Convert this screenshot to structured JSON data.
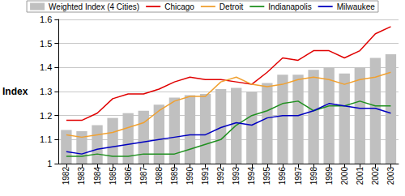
{
  "chart_data": {
    "type": "bar",
    "y_label": "Index",
    "categories": [
      "1982",
      "1983",
      "1984",
      "1985",
      "1986",
      "1987",
      "1988",
      "1989",
      "1990",
      "1991",
      "1992",
      "1993",
      "1994",
      "1995",
      "1996",
      "1997",
      "1998",
      "1999",
      "2000",
      "2001",
      "2002",
      "2003"
    ],
    "series": [
      {
        "name": "Weighted Index (4 Cities)",
        "type": "bar",
        "color": "#c0c0c0",
        "values": [
          1.14,
          1.135,
          1.16,
          1.19,
          1.21,
          1.22,
          1.245,
          1.275,
          1.285,
          1.29,
          1.31,
          1.315,
          1.3,
          1.335,
          1.37,
          1.37,
          1.39,
          1.4,
          1.375,
          1.4,
          1.44,
          1.455
        ]
      },
      {
        "name": "Chicago",
        "type": "line",
        "color": "#e00000",
        "values": [
          1.18,
          1.18,
          1.21,
          1.27,
          1.29,
          1.29,
          1.31,
          1.34,
          1.36,
          1.35,
          1.35,
          1.34,
          1.33,
          1.38,
          1.44,
          1.43,
          1.47,
          1.47,
          1.44,
          1.47,
          1.54,
          1.57
        ]
      },
      {
        "name": "Detroit",
        "type": "line",
        "color": "#f0a030",
        "values": [
          1.12,
          1.11,
          1.12,
          1.13,
          1.15,
          1.17,
          1.22,
          1.26,
          1.28,
          1.28,
          1.34,
          1.36,
          1.33,
          1.32,
          1.33,
          1.35,
          1.36,
          1.35,
          1.33,
          1.35,
          1.36,
          1.38
        ]
      },
      {
        "name": "Indianapolis",
        "type": "line",
        "color": "#209020",
        "values": [
          1.03,
          1.03,
          1.04,
          1.03,
          1.03,
          1.04,
          1.04,
          1.04,
          1.06,
          1.08,
          1.1,
          1.16,
          1.2,
          1.22,
          1.25,
          1.26,
          1.22,
          1.24,
          1.24,
          1.26,
          1.24,
          1.24
        ]
      },
      {
        "name": "Milwaukee",
        "type": "line",
        "color": "#0000c0",
        "values": [
          1.05,
          1.04,
          1.06,
          1.07,
          1.08,
          1.09,
          1.1,
          1.11,
          1.12,
          1.12,
          1.15,
          1.17,
          1.16,
          1.19,
          1.2,
          1.2,
          1.22,
          1.25,
          1.24,
          1.23,
          1.23,
          1.21
        ]
      }
    ],
    "ylim": [
      1,
      1.6
    ],
    "yticks": [
      1,
      1.1,
      1.2,
      1.3,
      1.4,
      1.5,
      1.6
    ],
    "grid": true,
    "legend": "top"
  }
}
